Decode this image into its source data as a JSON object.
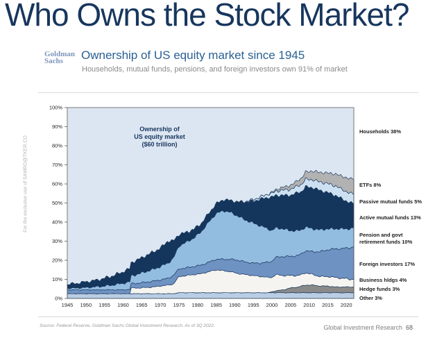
{
  "page": {
    "title": "Who Owns the Stock Market?"
  },
  "brand": {
    "line1": "Goldman",
    "line2": "Sachs"
  },
  "header": {
    "heading": "Ownership of US equity market since 1945",
    "subheading": "Households, mutual funds, pensions, and foreign investors own 91% of market"
  },
  "watermark": "For the exclusive use of SAMRO@TKER.CO",
  "chart_data": {
    "type": "area",
    "stacked": true,
    "annotation": [
      "Ownership of",
      "US equity market",
      "($60 trillion)"
    ],
    "ylim": [
      0,
      100
    ],
    "yticks": [
      100,
      90,
      80,
      70,
      60,
      50,
      40,
      30,
      20,
      10,
      0
    ],
    "ytick_suffix": "%",
    "xticks": [
      1945,
      1950,
      1955,
      1960,
      1965,
      1970,
      1975,
      1980,
      1985,
      1990,
      1995,
      2000,
      2005,
      2010,
      2015,
      2020
    ],
    "outline_color": "#1e3a5f",
    "background_series": {
      "name": "Households",
      "color": "#dce6f2",
      "share_2022": 38
    },
    "x": [
      1945,
      1948,
      1950,
      1952,
      1955,
      1958,
      1960,
      1961.9,
      1962,
      1964,
      1966,
      1968,
      1970,
      1972,
      1973.5,
      1975,
      1977,
      1979,
      1981,
      1983,
      1985,
      1987,
      1989,
      1991,
      1993,
      1995,
      1997,
      1999,
      2000,
      2001,
      2003,
      2005,
      2007,
      2008,
      2009,
      2011,
      2013,
      2015,
      2017,
      2019,
      2020,
      2021,
      2022
    ],
    "series": [
      {
        "name": "Other",
        "color": "#b9cde4",
        "share_2022": 3,
        "values": [
          2.5,
          2.5,
          2.5,
          2.5,
          2.5,
          2.5,
          2.5,
          2.5,
          2.5,
          2.5,
          2.5,
          2.5,
          2.5,
          2.5,
          2.5,
          3,
          3,
          3,
          3,
          3,
          3,
          3,
          3,
          3,
          3,
          3,
          3,
          3,
          3,
          3,
          3,
          3,
          3,
          3,
          3,
          3,
          3,
          3,
          3,
          3,
          3,
          3,
          3
        ]
      },
      {
        "name": "Hedge funds",
        "color": "#8a8a8a",
        "share_2022": 3,
        "values": [
          0,
          0,
          0,
          0,
          0,
          0,
          0,
          0,
          0,
          0,
          0,
          0,
          0,
          0,
          0,
          0,
          0,
          0,
          0,
          0,
          0,
          0,
          0,
          0,
          0,
          0,
          0,
          0,
          0.5,
          1,
          1.5,
          2.5,
          3,
          3.5,
          4,
          4,
          3.5,
          3.5,
          3,
          3,
          3,
          3,
          3
        ]
      },
      {
        "name": "Business holdings",
        "color": "#f5f4f0",
        "share_2022": 4,
        "values": [
          0,
          0,
          0,
          0,
          0,
          0,
          0,
          0,
          3,
          3,
          3.2,
          3.5,
          4,
          4.5,
          5,
          8.5,
          9,
          9.5,
          10,
          11,
          12,
          11.5,
          11,
          10,
          9.5,
          9,
          8.5,
          8,
          7.5,
          8.5,
          7.5,
          6.5,
          6,
          6,
          6.5,
          5.5,
          5,
          5,
          5,
          4.5,
          4.5,
          4,
          4
        ]
      },
      {
        "name": "Foreign investors",
        "color": "#6e92c2",
        "share_2022": 17,
        "values": [
          2,
          2,
          2,
          2,
          2,
          2,
          2,
          2.2,
          2.2,
          2.5,
          2.8,
          3,
          3.2,
          3.5,
          4.5,
          4,
          4,
          4.2,
          4.5,
          5,
          5.5,
          6,
          6.5,
          7,
          6.5,
          6.5,
          7,
          8,
          8.5,
          9,
          10,
          10,
          10.5,
          11,
          11.5,
          12,
          13,
          14,
          15,
          15.5,
          16,
          16.5,
          17
        ]
      },
      {
        "name": "Pension and govt retirement funds",
        "color": "#92bce0",
        "share_2022": 10,
        "values": [
          0.8,
          1,
          1.2,
          1.5,
          2,
          2.8,
          3.5,
          4,
          4,
          4.8,
          5.5,
          6.2,
          7,
          8,
          9,
          12,
          13.5,
          15,
          17.5,
          21,
          24,
          25.5,
          24.5,
          23,
          22,
          21,
          19.5,
          17.5,
          16,
          15.5,
          14.5,
          13.5,
          13,
          12.5,
          12.5,
          12,
          11.5,
          11,
          10.5,
          10.5,
          10,
          10,
          10
        ]
      },
      {
        "name": "Active mutual funds",
        "color": "#14365c",
        "share_2022": 13,
        "values": [
          2,
          2.5,
          3,
          3.2,
          4,
          5,
          6,
          6.8,
          6.8,
          7.5,
          8.2,
          9,
          9.5,
          11.5,
          9,
          6,
          5,
          4.5,
          4.2,
          4.5,
          5,
          5.8,
          6.2,
          7.5,
          9.5,
          11.5,
          14,
          16.5,
          17.5,
          17,
          17.5,
          18.5,
          20,
          20,
          21,
          21.5,
          20.5,
          19,
          17.5,
          15.5,
          14.5,
          13.5,
          13
        ]
      },
      {
        "name": "Passive mutual funds",
        "color": "#cce0f2",
        "share_2022": 5,
        "values": [
          0,
          0,
          0,
          0,
          0,
          0,
          0,
          0,
          0,
          0,
          0,
          0,
          0,
          0,
          0,
          0,
          0,
          0,
          0,
          0,
          0,
          0,
          0,
          0,
          0.3,
          0.8,
          1.2,
          1.8,
          2,
          2.2,
          2.8,
          3.2,
          3.6,
          3.8,
          4,
          4.2,
          4.5,
          4.7,
          5,
          5,
          5,
          5,
          5
        ]
      },
      {
        "name": "ETFs",
        "color": "#b2b2b2",
        "share_2022": 8,
        "values": [
          0,
          0,
          0,
          0,
          0,
          0,
          0,
          0,
          0,
          0,
          0,
          0,
          0,
          0,
          0,
          0,
          0,
          0,
          0,
          0,
          0,
          0,
          0,
          0,
          0,
          0,
          0,
          0,
          0.5,
          0.8,
          1.5,
          2,
          2.8,
          3.2,
          3.8,
          4.5,
          5,
          5.5,
          6.2,
          7,
          7.2,
          7.6,
          8
        ]
      }
    ],
    "legend": [
      {
        "label": "Households 38%"
      },
      {
        "label": "ETFs 8%"
      },
      {
        "label": "Passive mutual funds 5%"
      },
      {
        "label": "Active mutual funds 13%"
      },
      {
        "label": "Pension and govt",
        "label2": "retirement funds 10%"
      },
      {
        "label": "Foreign investors 17%"
      },
      {
        "label": "Business hldgs 4%"
      },
      {
        "label": "Hedge funds 3%"
      },
      {
        "label": "Other 3%"
      }
    ]
  },
  "footer": {
    "source": "Source: Federal Reserve, Goldman Sachs Global Investment Research. As of 3Q 2022.",
    "right_label": "Global Investment Research",
    "page_number": "68"
  }
}
